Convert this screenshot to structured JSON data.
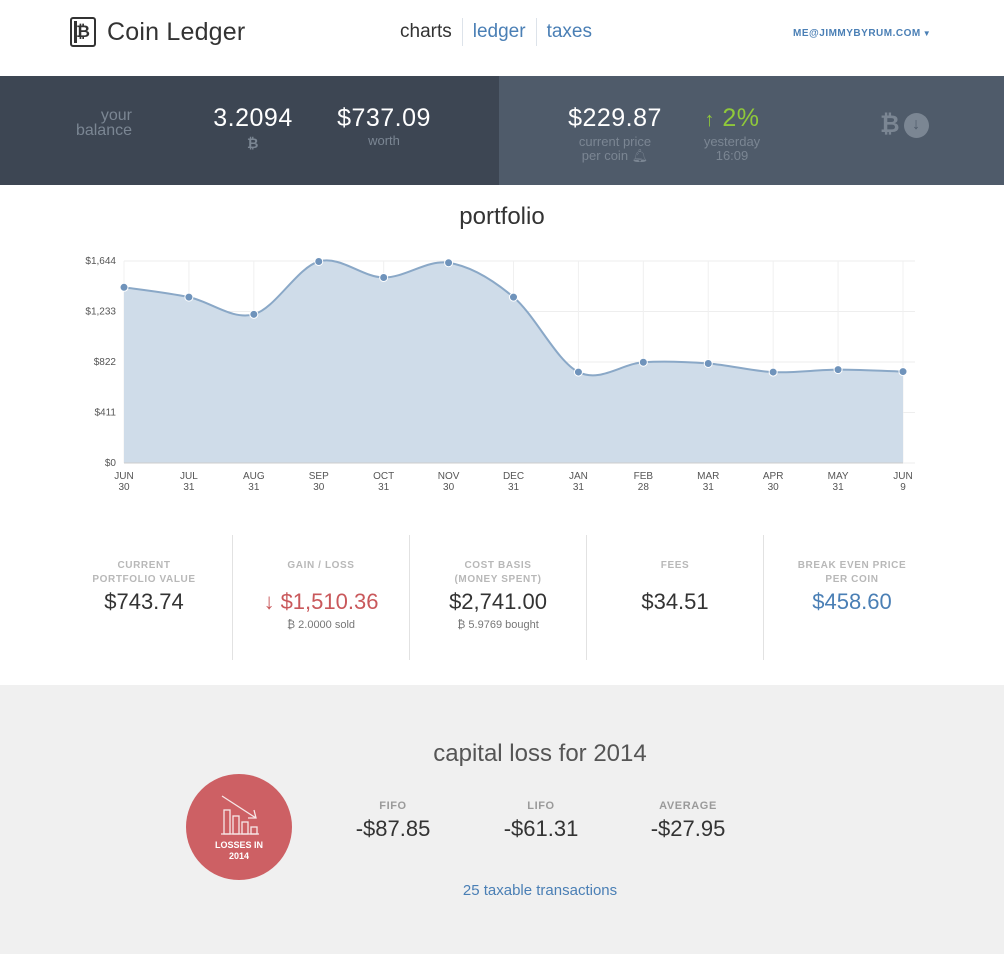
{
  "header": {
    "app_title": "Coin Ledger",
    "logo_symbol": "₿",
    "nav": [
      {
        "label": "charts",
        "active": true
      },
      {
        "label": "ledger",
        "active": false
      },
      {
        "label": "taxes",
        "active": false
      }
    ],
    "user_email": "ME@JIMMYBYRUM.COM"
  },
  "stats": {
    "balance_label_line1": "your",
    "balance_label_line2": "balance",
    "balance_amount": "3.2094",
    "balance_unit_symbol": "₿",
    "worth_amount": "$737.09",
    "worth_label": "worth",
    "current_price": "$229.87",
    "current_price_label_line1": "current price",
    "current_price_label_line2": "per coin",
    "change_percent": "2%",
    "change_label": "yesterday",
    "change_time": "16:09",
    "accent_green": "#8fc83a"
  },
  "portfolio": {
    "title": "portfolio"
  },
  "chart_data": {
    "type": "area",
    "x_labels": [
      [
        "JUN",
        "30"
      ],
      [
        "JUL",
        "31"
      ],
      [
        "AUG",
        "31"
      ],
      [
        "SEP",
        "30"
      ],
      [
        "OCT",
        "31"
      ],
      [
        "NOV",
        "30"
      ],
      [
        "DEC",
        "31"
      ],
      [
        "JAN",
        "31"
      ],
      [
        "FEB",
        "28"
      ],
      [
        "MAR",
        "31"
      ],
      [
        "APR",
        "30"
      ],
      [
        "MAY",
        "31"
      ],
      [
        "JUN",
        "9"
      ]
    ],
    "values": [
      1430,
      1350,
      1210,
      1640,
      1510,
      1630,
      1350,
      740,
      820,
      810,
      740,
      760,
      744
    ],
    "y_ticks": [
      "$0",
      "$411",
      "$822",
      "$1,233",
      "$1,644"
    ],
    "y_tick_values": [
      0,
      411,
      822,
      1233,
      1644
    ],
    "ylim": [
      0,
      1644
    ],
    "grid": true,
    "fill_color": "#cfdce9",
    "line_color": "#8aa8c7",
    "point_color": "#6f93bb"
  },
  "metrics": [
    {
      "label": "CURRENT\nPORTFOLIO VALUE",
      "value": "$743.74",
      "sub": ""
    },
    {
      "label": "GAIN / LOSS",
      "value": "$1,510.36",
      "sub": "₿ 2.0000 sold"
    },
    {
      "label": "COST BASIS\n(MONEY SPENT)",
      "value": "$2,741.00",
      "sub": "₿ 5.9769 bought"
    },
    {
      "label": "FEES",
      "value": "$34.51",
      "sub": ""
    },
    {
      "label": "BREAK EVEN PRICE\nPER COIN",
      "value": "$458.60",
      "sub": ""
    }
  ],
  "capital_loss": {
    "title": "capital loss for 2014",
    "badge": "LOSSES IN\n2014",
    "columns": [
      {
        "label": "FIFO",
        "value": "-$87.85"
      },
      {
        "label": "LIFO",
        "value": "-$61.31"
      },
      {
        "label": "AVERAGE",
        "value": "-$27.95"
      }
    ],
    "taxable_link": "25 taxable transactions",
    "badge_color": "#cd6064"
  }
}
